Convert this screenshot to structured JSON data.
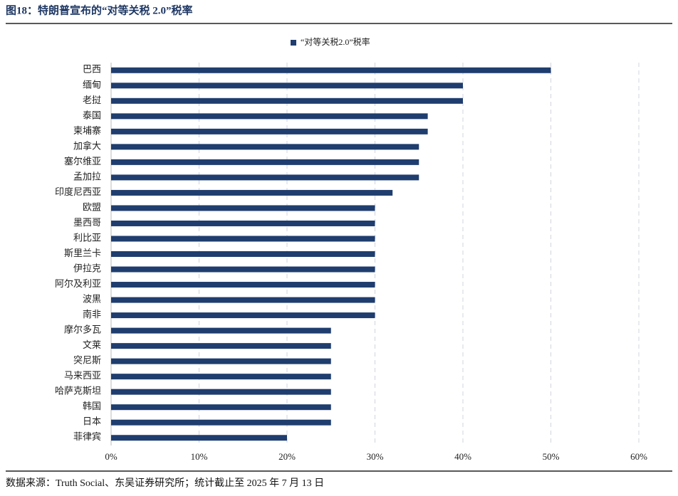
{
  "chart_data": {
    "type": "hbar",
    "title": "图18：特朗普宣布的“对等关税 2.0”税率",
    "source": "数据来源：Truth Social、东吴证券研究所；统计截止至 2025 年 7 月 13 日",
    "categories": [
      "巴西",
      "缅甸",
      "老挝",
      "泰国",
      "柬埔寨",
      "加拿大",
      "塞尔维亚",
      "孟加拉",
      "印度尼西亚",
      "欧盟",
      "墨西哥",
      "利比亚",
      "斯里兰卡",
      "伊拉克",
      "阿尔及利亚",
      "波黑",
      "南非",
      "摩尔多瓦",
      "文莱",
      "突尼斯",
      "马来西亚",
      "哈萨克斯坦",
      "韩国",
      "日本",
      "菲律宾"
    ],
    "series": [
      {
        "name": "“对等关税2.0”税率",
        "color": "#1f3d6e",
        "values": [
          50,
          40,
          40,
          36,
          36,
          35,
          35,
          35,
          32,
          30,
          30,
          30,
          30,
          30,
          30,
          30,
          30,
          25,
          25,
          25,
          25,
          25,
          25,
          25,
          20
        ]
      }
    ],
    "xlim": [
      0,
      60
    ],
    "xticks": [
      {
        "value": 0,
        "label": "0%"
      },
      {
        "value": 10,
        "label": "10%"
      },
      {
        "value": 20,
        "label": "20%"
      },
      {
        "value": 30,
        "label": "30%"
      },
      {
        "value": 40,
        "label": "40%"
      },
      {
        "value": 50,
        "label": "50%"
      },
      {
        "value": 60,
        "label": "60%"
      }
    ],
    "grid": true,
    "legend": "top"
  }
}
